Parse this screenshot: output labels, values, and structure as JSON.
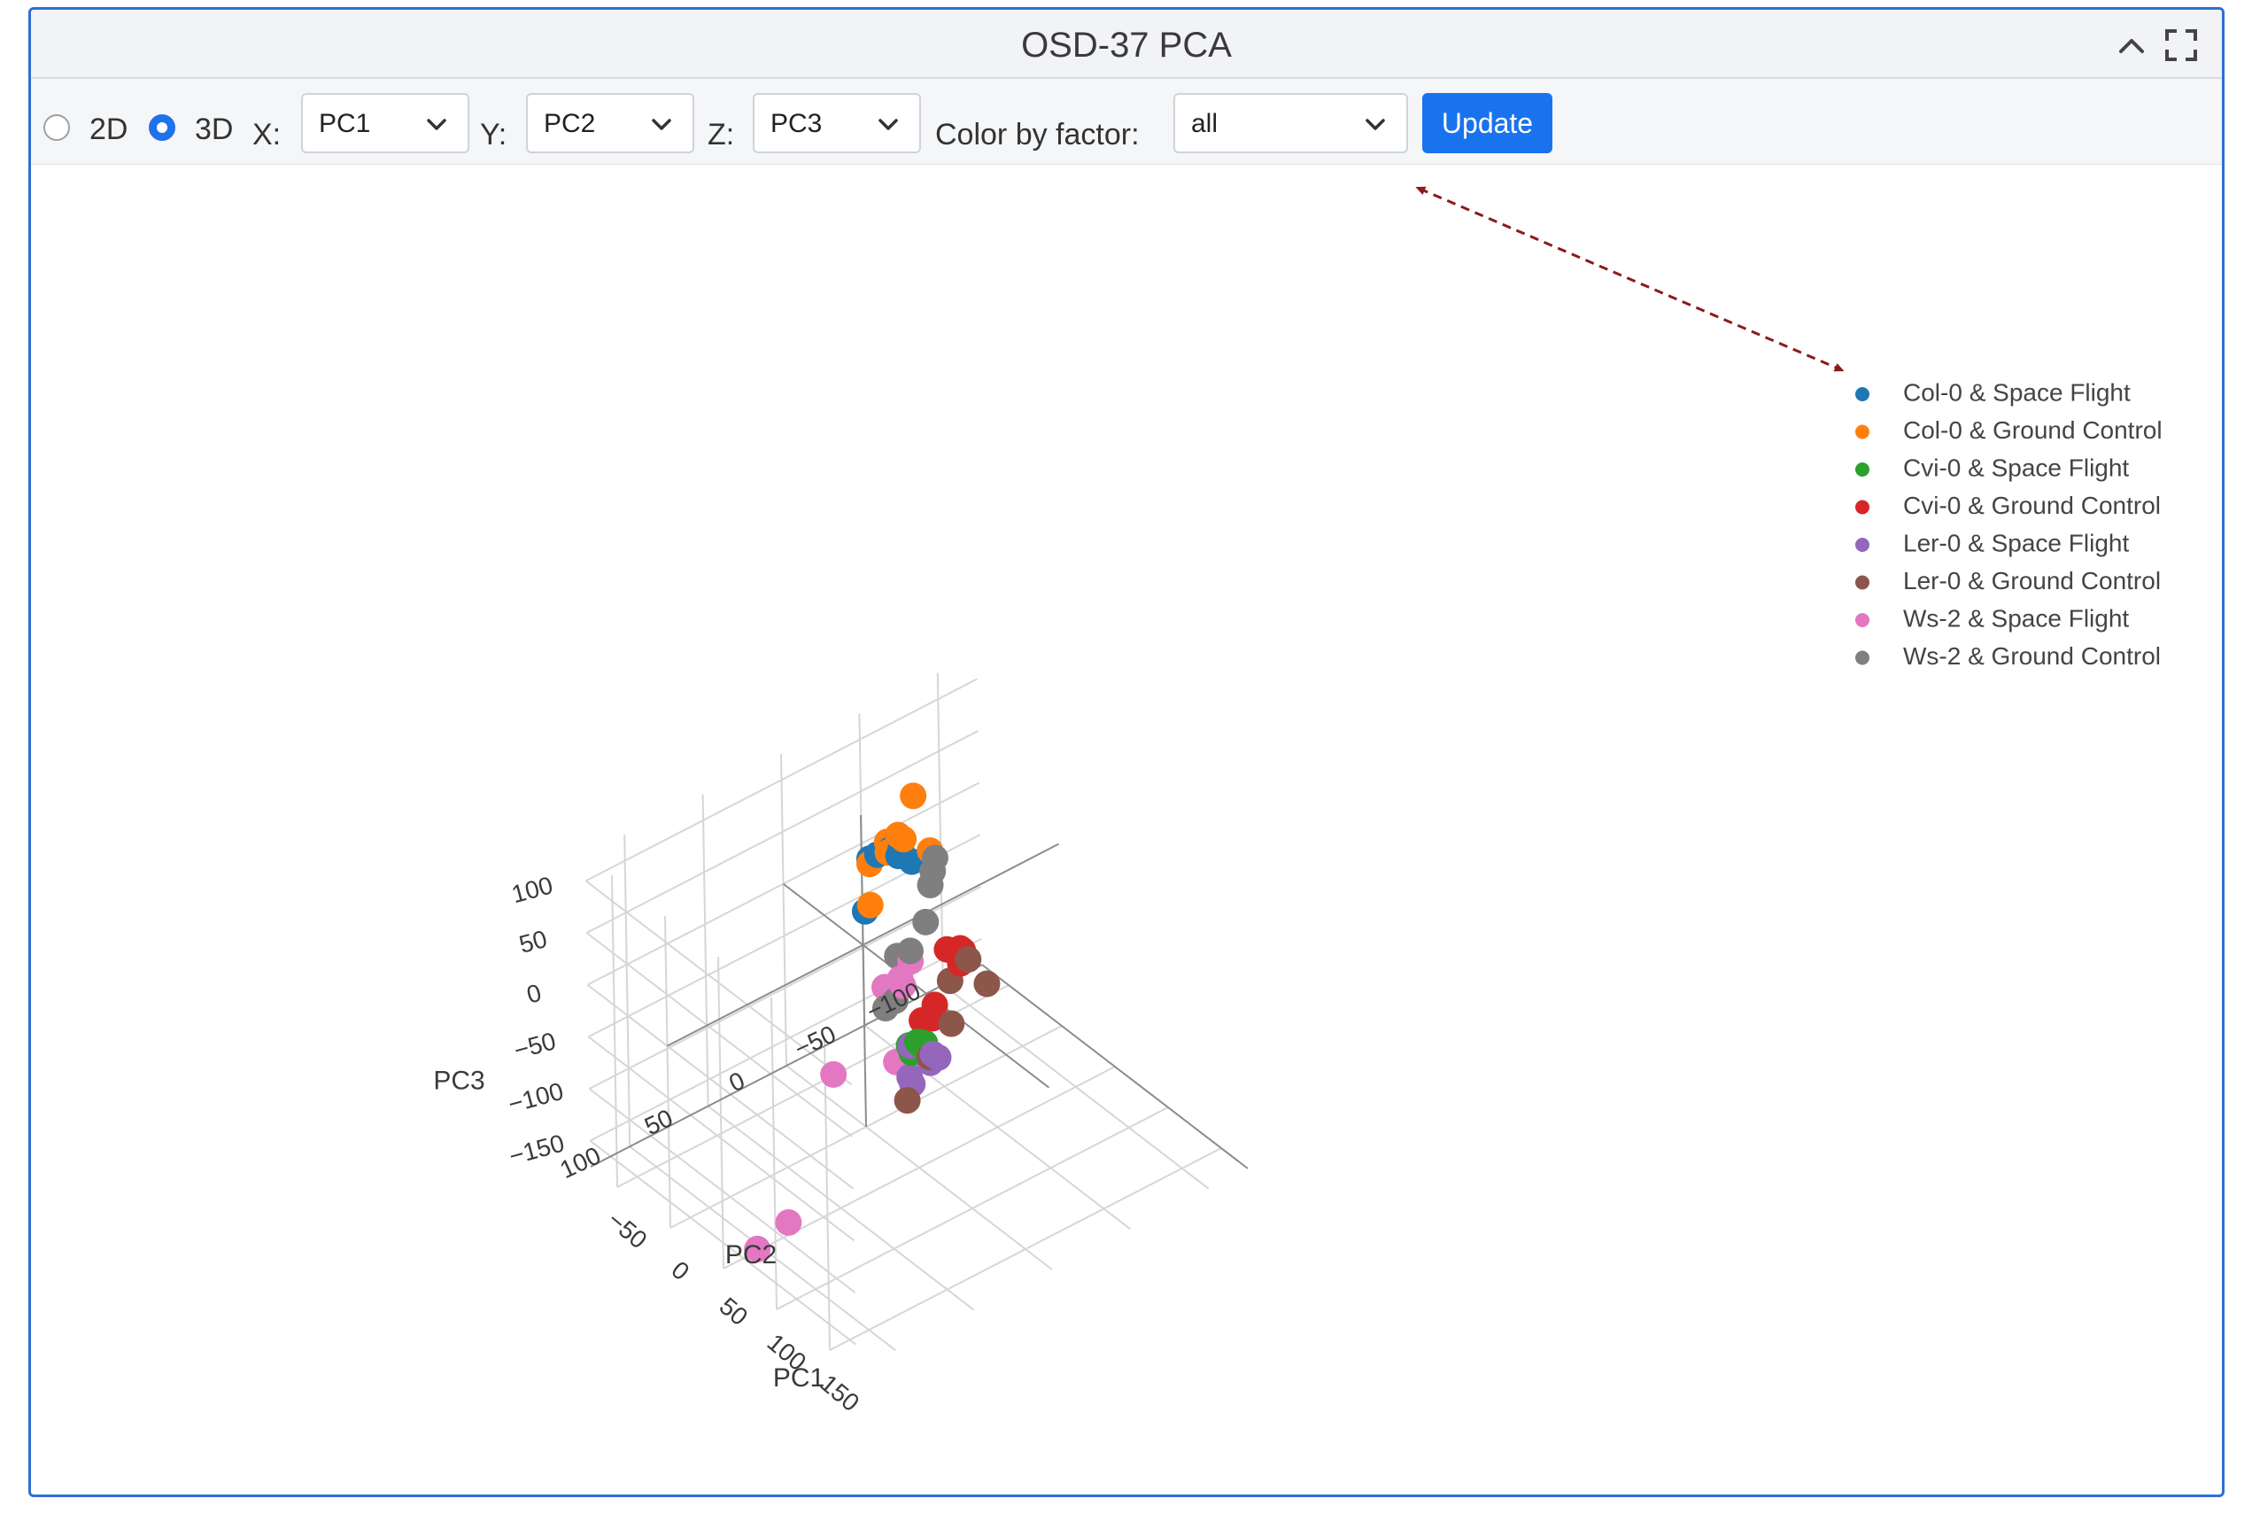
{
  "panel": {
    "title": "OSD-37 PCA",
    "icons": [
      "chevron-up-icon",
      "fullscreen-icon"
    ]
  },
  "toolbar": {
    "mode_2d_label": "2D",
    "mode_3d_label": "3D",
    "mode_selected": "3D",
    "x_label": "X:",
    "x_value": "PC1",
    "y_label": "Y:",
    "y_value": "PC2",
    "z_label": "Z:",
    "z_value": "PC3",
    "color_label": "Color by factor:",
    "color_value": "all",
    "update_label": "Update"
  },
  "chart_data": {
    "type": "scatter",
    "projection": "3d",
    "xlabel": "PC1",
    "ylabel": "PC2",
    "zlabel": "PC3",
    "x_ticks": [
      "−50",
      "0",
      "50",
      "100",
      "150"
    ],
    "y_ticks": [
      "−100",
      "−50",
      "0",
      "50",
      "100"
    ],
    "z_ticks": [
      "100",
      "50",
      "0",
      "−50",
      "−100",
      "−150"
    ],
    "xlim": [
      -75,
      175
    ],
    "ylim": [
      -125,
      125
    ],
    "zlim": [
      -175,
      125
    ],
    "legend_position": "right",
    "series": [
      {
        "name": "Col-0 & Space Flight",
        "color": "#1f77b4",
        "points": [
          [
            -30,
            -45,
            35
          ],
          [
            -25,
            -40,
            35
          ],
          [
            -30,
            -30,
            40
          ],
          [
            -25,
            -35,
            45
          ],
          [
            -20,
            -15,
            5
          ],
          [
            -35,
            -55,
            10
          ],
          [
            -30,
            -25,
            40
          ]
        ]
      },
      {
        "name": "Col-0 & Ground Control",
        "color": "#ff7f0e",
        "points": [
          [
            -25,
            -50,
            85
          ],
          [
            -20,
            -30,
            50
          ],
          [
            -20,
            -40,
            55
          ],
          [
            -30,
            -25,
            35
          ],
          [
            -15,
            -15,
            15
          ],
          [
            -40,
            -70,
            5
          ],
          [
            -25,
            -40,
            55
          ],
          [
            -28,
            -35,
            50
          ]
        ]
      },
      {
        "name": "Cvi-0 & Space Flight",
        "color": "#2ca02c",
        "points": [
          [
            85,
            20,
            -15
          ],
          [
            90,
            30,
            -10
          ],
          [
            95,
            35,
            5
          ],
          [
            80,
            15,
            -20
          ],
          [
            88,
            25,
            -5
          ]
        ]
      },
      {
        "name": "Cvi-0 & Ground Control",
        "color": "#d62728",
        "points": [
          [
            70,
            -15,
            40
          ],
          [
            65,
            -20,
            30
          ],
          [
            85,
            -5,
            45
          ],
          [
            75,
            5,
            5
          ],
          [
            70,
            10,
            -10
          ],
          [
            80,
            10,
            0
          ],
          [
            62,
            -12,
            35
          ]
        ]
      },
      {
        "name": "Ler-0 & Space Flight",
        "color": "#9467bd",
        "points": [
          [
            80,
            25,
            -45
          ],
          [
            85,
            15,
            -35
          ],
          [
            90,
            30,
            -40
          ],
          [
            95,
            20,
            -15
          ],
          [
            88,
            12,
            -30
          ],
          [
            92,
            32,
            0
          ]
        ]
      },
      {
        "name": "Ler-0 & Ground Control",
        "color": "#8c564b",
        "points": [
          [
            85,
            -10,
            45
          ],
          [
            110,
            -5,
            45
          ],
          [
            90,
            5,
            40
          ],
          [
            100,
            40,
            -40
          ],
          [
            92,
            20,
            -20
          ],
          [
            95,
            8,
            5
          ]
        ]
      },
      {
        "name": "Ws-2 & Space Flight",
        "color": "#e377c2",
        "points": [
          [
            30,
            -10,
            0
          ],
          [
            35,
            0,
            -5
          ],
          [
            20,
            0,
            -25
          ],
          [
            45,
            5,
            0
          ],
          [
            30,
            40,
            -70
          ],
          [
            60,
            20,
            -50
          ],
          [
            60,
            90,
            -150
          ],
          [
            60,
            110,
            -160
          ]
        ]
      },
      {
        "name": "Ws-2 & Ground Control",
        "color": "#7f7f7f",
        "points": [
          [
            25,
            -30,
            80
          ],
          [
            30,
            -25,
            75
          ],
          [
            20,
            -30,
            50
          ],
          [
            30,
            -20,
            30
          ],
          [
            30,
            -10,
            10
          ],
          [
            25,
            -5,
            5
          ],
          [
            30,
            0,
            -30
          ],
          [
            28,
            5,
            -35
          ]
        ]
      }
    ]
  }
}
